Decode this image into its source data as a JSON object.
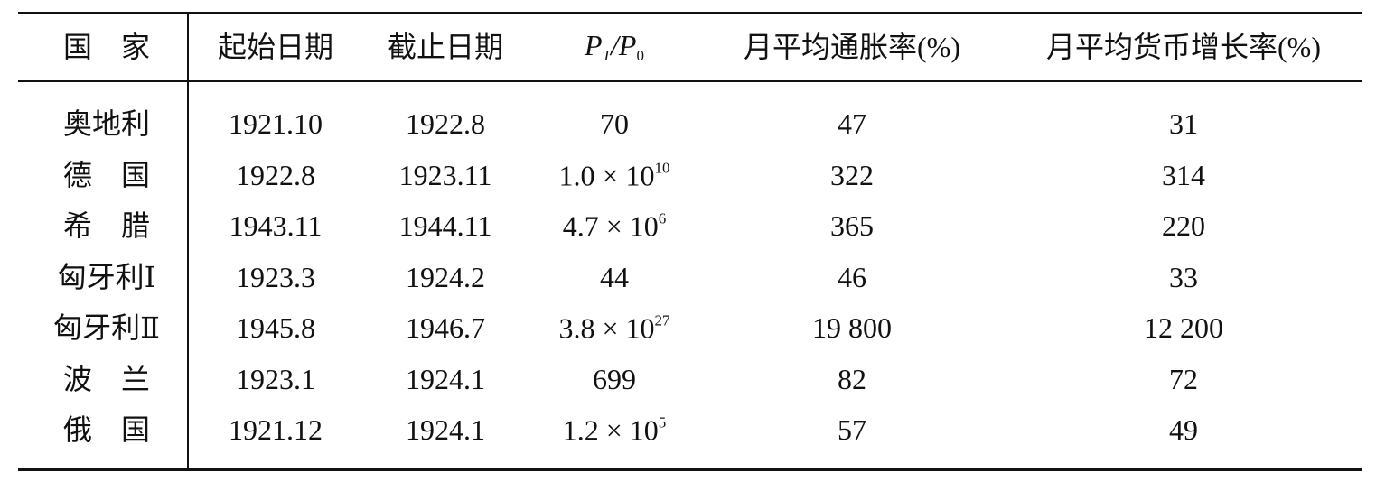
{
  "table": {
    "header": [
      "国　家",
      "起始日期",
      "截止日期",
      {
        "p": "P",
        "sub1": "T",
        "slash": "/P",
        "sub2": "0"
      },
      "月平均通胀率(%)",
      "月平均货币增长率(%)"
    ],
    "rows": [
      [
        "奥地利",
        "1921.10",
        "1922.8",
        {
          "text": "70"
        },
        "47",
        "31"
      ],
      [
        "德　国",
        "1922.8",
        "1923.11",
        {
          "text": "1.0 × 10",
          "sup": "10"
        },
        "322",
        "314"
      ],
      [
        "希　腊",
        "1943.11",
        "1944.11",
        {
          "text": "4.7 × 10",
          "sup": "6"
        },
        "365",
        "220"
      ],
      [
        "匈牙利Ⅰ",
        "1923.3",
        "1924.2",
        {
          "text": "44"
        },
        "46",
        "33"
      ],
      [
        "匈牙利Ⅱ",
        "1945.8",
        "1946.7",
        {
          "text": "3.8 × 10",
          "sup": "27"
        },
        "19 800",
        "12 200"
      ],
      [
        "波　兰",
        "1923.1",
        "1924.1",
        {
          "text": "699"
        },
        "82",
        "72"
      ],
      [
        "俄　国",
        "1921.12",
        "1924.1",
        {
          "text": "1.2 × 10",
          "sup": "5"
        },
        "57",
        "49"
      ]
    ]
  }
}
